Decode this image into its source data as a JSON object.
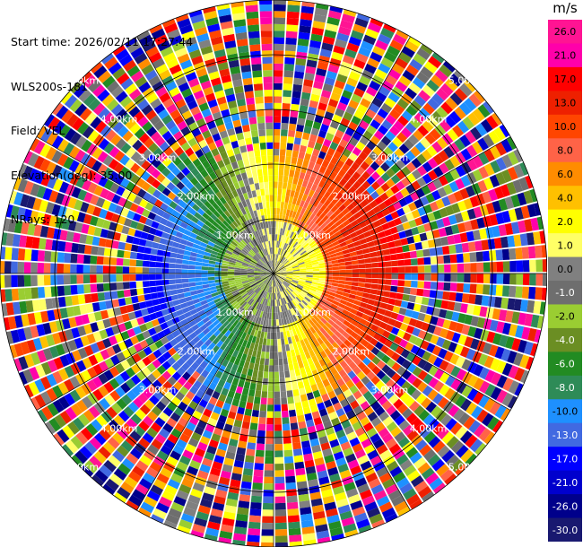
{
  "header": {
    "start_time": "Start time: 2026/02/11 17:27:44",
    "instrument": "WLS200s-181",
    "field": "Field: VEL",
    "elevation": "Elevation(deg): 35.00",
    "nrays": "NRays: 120"
  },
  "colorbar": {
    "unit": "m/s",
    "bins": [
      {
        "label": "26.0",
        "color": "#ff1493"
      },
      {
        "label": "21.0",
        "color": "#ff00aa"
      },
      {
        "label": "17.0",
        "color": "#ff0000"
      },
      {
        "label": "13.0",
        "color": "#ee2000"
      },
      {
        "label": "10.0",
        "color": "#ff4500"
      },
      {
        "label": "8.0",
        "color": "#ff6347"
      },
      {
        "label": "6.0",
        "color": "#ff8c00"
      },
      {
        "label": "4.0",
        "color": "#ffc000"
      },
      {
        "label": "2.0",
        "color": "#ffff00"
      },
      {
        "label": "1.0",
        "color": "#ffff66"
      },
      {
        "label": "0.0",
        "color": "#808080"
      },
      {
        "label": "-1.0",
        "color": "#6e6e6e"
      },
      {
        "label": "-2.0",
        "color": "#9acd32"
      },
      {
        "label": "-4.0",
        "color": "#6b8e23"
      },
      {
        "label": "-6.0",
        "color": "#228b22"
      },
      {
        "label": "-8.0",
        "color": "#2e8b57"
      },
      {
        "label": "-10.0",
        "color": "#1e90ff"
      },
      {
        "label": "-13.0",
        "color": "#4169e1"
      },
      {
        "label": "-17.0",
        "color": "#0000ff"
      },
      {
        "label": "-21.0",
        "color": "#0000cd"
      },
      {
        "label": "-26.0",
        "color": "#00008b"
      },
      {
        "label": "-30.0",
        "color": "#191970"
      }
    ]
  },
  "chart_data": {
    "type": "heatmap",
    "projection": "polar PPI",
    "field": "VEL",
    "units": "m/s",
    "n_rays": 120,
    "max_range_km": 5.0,
    "range_rings_km": [
      1.0,
      2.0,
      3.0,
      4.0,
      5.0
    ],
    "range_labels": [
      "1.00km",
      "2.00km",
      "3.00km",
      "4.00km",
      "5.00km"
    ],
    "valid_data_range_km": [
      0.0,
      2.7
    ],
    "regions": [
      {
        "sector": "north-west",
        "velocity": "-6.0 to -8.0"
      },
      {
        "sector": "west",
        "velocity": "-13.0 to -21.0"
      },
      {
        "sector": "north",
        "velocity": "2.0 to 4.0"
      },
      {
        "sector": "east",
        "velocity": "10.0 to 17.0"
      },
      {
        "sector": "south-east",
        "velocity": "4.0 to 8.0"
      },
      {
        "sector": "south-west",
        "velocity": "-10.0 to -13.0"
      },
      {
        "sector": "center",
        "velocity": "-2.0 to 1.0"
      }
    ],
    "outer_noise": true
  }
}
